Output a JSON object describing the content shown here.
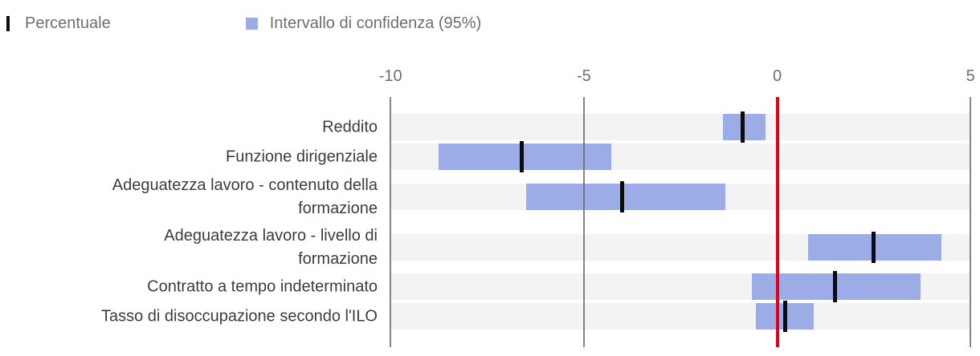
{
  "legend": {
    "percentile_label": "Percentuale",
    "ci_label": "Intervallo di confidenza (95%)"
  },
  "colors": {
    "ci_bar": "#9cace6",
    "estimate_marker": "#0c0c0c",
    "zero_line": "#e00019",
    "grid_line": "#6e6e6e",
    "row_band": "#f3f3f3",
    "category_text": "#3c3c3c",
    "tick_text": "#6e6e6e"
  },
  "chart_data": {
    "type": "bar",
    "subtype": "horizontal-interval-dot",
    "title": "",
    "xlabel": "",
    "ylabel": "",
    "xlim": [
      -10,
      5
    ],
    "xticks": [
      -10,
      -5,
      0,
      5
    ],
    "zero_reference_line": 0,
    "grid": "vertical",
    "legend_position": "top-left",
    "categories": [
      "Reddito",
      "Funzione dirigenziale",
      "Adeguatezza lavoro - contenuto della formazione",
      "Adeguatezza lavoro - livello di formazione",
      "Contratto a tempo indeterminato",
      "Tasso di disoccupazione secondo l'ILO"
    ],
    "category_lines": [
      [
        "Reddito"
      ],
      [
        "Funzione dirigenziale"
      ],
      [
        "Adeguatezza lavoro - contenuto della",
        "formazione"
      ],
      [
        "Adeguatezza lavoro - livello di",
        "formazione"
      ],
      [
        "Contratto a tempo indeterminato"
      ],
      [
        "Tasso di disoccupazione secondo l'ILO"
      ]
    ],
    "series": [
      {
        "name": "Percentuale",
        "values": [
          -0.9,
          -6.6,
          -4.0,
          2.5,
          1.5,
          0.2
        ]
      },
      {
        "name": "Intervallo di confidenza (95%) - limite inferiore",
        "values": [
          -1.4,
          -8.75,
          -6.5,
          0.8,
          -0.65,
          -0.55
        ]
      },
      {
        "name": "Intervallo di confidenza (95%) - limite superiore",
        "values": [
          -0.3,
          -4.3,
          -1.35,
          4.25,
          3.7,
          0.95
        ]
      }
    ]
  }
}
